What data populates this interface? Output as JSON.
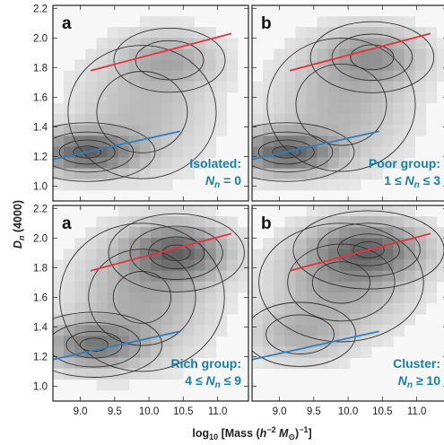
{
  "chart_data": {
    "type": "heatmap",
    "xlabel": {
      "pre": "log",
      "sub": "10",
      "mid": " [Mass (",
      "h": "h",
      "exp": "−2",
      "M": " M",
      "sun": "⊙",
      "post": ")",
      "exp2": "−1",
      "end": "]"
    },
    "ylabel": {
      "main": "D",
      "sub": "n",
      "rest": " (4000)"
    },
    "xlim": [
      8.6,
      11.45
    ],
    "ylim": [
      0.9,
      2.22
    ],
    "x_ticks": [
      "9.0",
      "9.5",
      "10.0",
      "10.5",
      "11.0"
    ],
    "y_ticks": [
      "1.0",
      "1.2",
      "1.4",
      "1.6",
      "1.8",
      "2.0",
      "2.2"
    ],
    "x_tick_values": [
      9.0,
      9.5,
      10.0,
      10.5,
      11.0
    ],
    "y_tick_values": [
      1.0,
      1.2,
      1.4,
      1.6,
      1.8,
      2.0,
      2.2
    ],
    "grid": false,
    "reference_lines": {
      "red": {
        "color": "#e8313a",
        "x": [
          9.15,
          11.2
        ],
        "y": [
          1.78,
          2.03
        ]
      },
      "blue": {
        "color": "#2f7fc1",
        "x": [
          8.6,
          10.45
        ],
        "y": [
          1.18,
          1.37
        ]
      }
    },
    "panels": [
      {
        "letter": "a",
        "line1": "Isolated:",
        "line2": {
          "N": "N",
          "sub": "n",
          "rest": " = 0"
        },
        "density_peaks": [
          {
            "x": 9.1,
            "y": 1.23,
            "sx": 0.45,
            "sy": 0.09,
            "w": 1.0
          },
          {
            "x": 9.9,
            "y": 1.5,
            "sx": 0.6,
            "sy": 0.25,
            "w": 0.25
          },
          {
            "x": 10.3,
            "y": 1.85,
            "sx": 0.45,
            "sy": 0.12,
            "w": 0.35
          }
        ]
      },
      {
        "letter": "b",
        "line1": "Poor group:",
        "line2": {
          "pre": "1 ≤ ",
          "N": "N",
          "sub": "n",
          "rest": " ≤ 3"
        },
        "density_peaks": [
          {
            "x": 9.1,
            "y": 1.23,
            "sx": 0.45,
            "sy": 0.09,
            "w": 1.0
          },
          {
            "x": 9.9,
            "y": 1.55,
            "sx": 0.6,
            "sy": 0.25,
            "w": 0.3
          },
          {
            "x": 10.35,
            "y": 1.87,
            "sx": 0.45,
            "sy": 0.12,
            "w": 0.5
          }
        ]
      },
      {
        "letter": "a",
        "line1": "Rich group:",
        "line2": {
          "pre": "4 ≤ ",
          "N": "N",
          "sub": "n",
          "rest": " ≤ 9"
        },
        "density_peaks": [
          {
            "x": 9.2,
            "y": 1.28,
            "sx": 0.45,
            "sy": 0.1,
            "w": 0.8
          },
          {
            "x": 9.9,
            "y": 1.6,
            "sx": 0.6,
            "sy": 0.25,
            "w": 0.4
          },
          {
            "x": 10.4,
            "y": 1.9,
            "sx": 0.45,
            "sy": 0.12,
            "w": 1.0
          }
        ]
      },
      {
        "letter": "b",
        "line1": "Cluster:",
        "line2": {
          "N": "N",
          "sub": "n",
          "rest": " ≥ 10"
        },
        "density_peaks": [
          {
            "x": 9.3,
            "y": 1.35,
            "sx": 0.45,
            "sy": 0.12,
            "w": 0.35
          },
          {
            "x": 9.9,
            "y": 1.7,
            "sx": 0.6,
            "sy": 0.2,
            "w": 0.5
          },
          {
            "x": 10.3,
            "y": 1.92,
            "sx": 0.5,
            "sy": 0.12,
            "w": 1.0
          }
        ]
      }
    ]
  }
}
